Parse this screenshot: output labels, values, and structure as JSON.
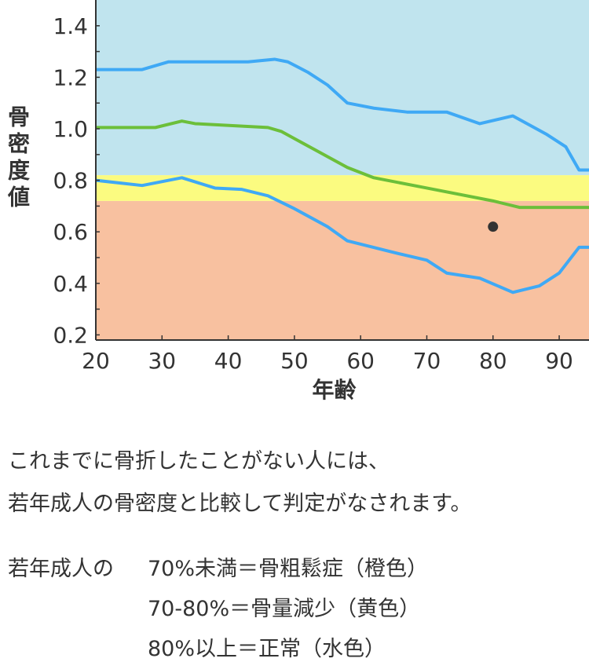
{
  "chart_data": {
    "type": "line",
    "xlabel": "年齢",
    "ylabel": "骨密度値",
    "xlim": [
      20,
      94.5
    ],
    "ylim": [
      0.18,
      1.5
    ],
    "xticks": [
      20,
      30,
      40,
      50,
      60,
      70,
      80,
      90
    ],
    "yticks": [
      "0.2",
      "0.4",
      "0.6",
      "0.8",
      "1.0",
      "1.2",
      "1.4"
    ],
    "bands": [
      {
        "from": 0.18,
        "to": 0.72,
        "color": "#f8c1a0"
      },
      {
        "from": 0.72,
        "to": 0.82,
        "color": "#fbfb80"
      },
      {
        "from": 0.82,
        "to": 1.5,
        "color": "#c0e4ee"
      }
    ],
    "series": [
      {
        "color": "#3fa9f5",
        "points": [
          [
            20,
            1.23
          ],
          [
            27,
            1.23
          ],
          [
            31,
            1.26
          ],
          [
            43,
            1.26
          ],
          [
            47,
            1.27
          ],
          [
            49,
            1.26
          ],
          [
            52,
            1.22
          ],
          [
            55,
            1.17
          ],
          [
            58,
            1.1
          ],
          [
            62,
            1.08
          ],
          [
            67,
            1.065
          ],
          [
            73,
            1.065
          ],
          [
            78,
            1.02
          ],
          [
            83,
            1.05
          ],
          [
            88,
            0.98
          ],
          [
            91,
            0.93
          ],
          [
            93,
            0.84
          ],
          [
            95,
            0.84
          ]
        ]
      },
      {
        "color": "#6cbf3a",
        "points": [
          [
            20,
            1.005
          ],
          [
            29,
            1.005
          ],
          [
            33,
            1.03
          ],
          [
            35,
            1.02
          ],
          [
            46,
            1.005
          ],
          [
            48,
            0.99
          ],
          [
            53,
            0.92
          ],
          [
            58,
            0.85
          ],
          [
            62,
            0.81
          ],
          [
            70,
            0.77
          ],
          [
            80,
            0.72
          ],
          [
            84,
            0.695
          ],
          [
            95,
            0.695
          ]
        ]
      },
      {
        "color": "#3fa9f5",
        "points": [
          [
            20,
            0.8
          ],
          [
            27,
            0.78
          ],
          [
            33,
            0.81
          ],
          [
            38,
            0.77
          ],
          [
            42,
            0.765
          ],
          [
            46,
            0.74
          ],
          [
            50,
            0.69
          ],
          [
            55,
            0.62
          ],
          [
            58,
            0.565
          ],
          [
            65,
            0.52
          ],
          [
            70,
            0.49
          ],
          [
            73,
            0.44
          ],
          [
            78,
            0.42
          ],
          [
            83,
            0.365
          ],
          [
            87,
            0.39
          ],
          [
            90,
            0.44
          ],
          [
            93,
            0.54
          ],
          [
            95,
            0.54
          ]
        ]
      }
    ],
    "marker": {
      "x": 80,
      "y": 0.62,
      "color": "#333333"
    },
    "grid": false
  },
  "text": {
    "line1": "これまでに骨折したことがない人には、",
    "line2": "若年成人の骨密度と比較して判定がなされます。",
    "criteria_prefix": "若年成人の",
    "criteria": [
      "70%未満＝骨粗鬆症（橙色）",
      "70-80%＝骨量減少（黄色）",
      "80%以上＝正常（水色）"
    ]
  }
}
